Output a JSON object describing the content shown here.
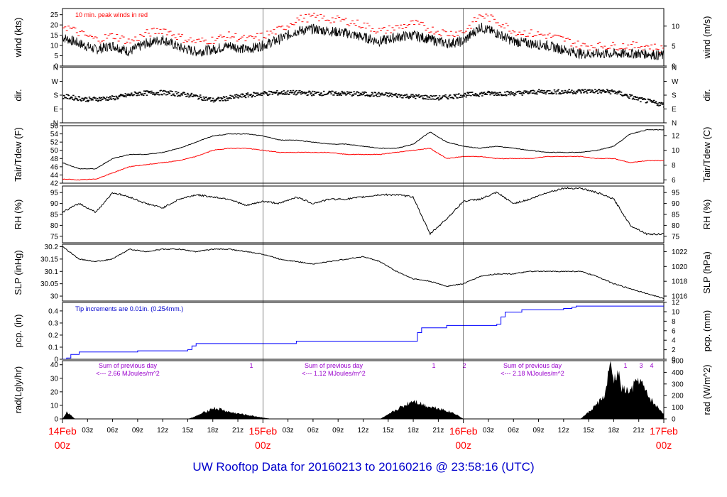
{
  "title": "UW Rooftop Data for 20160213  to  20160216 @ 23:58:16  (UTC)",
  "colors": {
    "black": "#000000",
    "red": "#ff0000",
    "blue": "#0000ff",
    "purple": "#9900cc",
    "title": "#0000cc"
  },
  "chart_data": [
    {
      "type": "line",
      "ylabel": "wind (kts)",
      "ylabel_right": "wind (m/s)",
      "annotation": "10 min. peak winds in red",
      "ylim": [
        0,
        28
      ],
      "yticks": [
        0,
        5,
        10,
        15,
        20,
        25
      ],
      "yticks_right": [
        {
          "label": "0",
          "at": 0
        },
        {
          "label": "5",
          "at": 9.72
        },
        {
          "label": "10",
          "at": 19.44
        }
      ],
      "series": [
        {
          "color": "#000000",
          "x": [
            0,
            2,
            4,
            6,
            8,
            10,
            12,
            14,
            16,
            18,
            20,
            22,
            24,
            26,
            28,
            30,
            32,
            34,
            36,
            38,
            40,
            42,
            44,
            46,
            48,
            50,
            52,
            54,
            56,
            58,
            60,
            62,
            64,
            66,
            68,
            70,
            72
          ],
          "values": [
            14,
            11,
            8,
            10,
            7,
            11,
            13,
            9,
            7,
            8,
            10,
            8,
            10,
            13,
            17,
            18,
            17,
            16,
            14,
            12,
            14,
            15,
            13,
            11,
            12,
            19,
            16,
            12,
            11,
            10,
            8,
            6,
            6,
            6,
            6,
            6,
            5
          ]
        },
        {
          "color": "#ff0000",
          "style": "dashes",
          "x": [
            0,
            2,
            4,
            6,
            8,
            10,
            12,
            14,
            16,
            18,
            20,
            22,
            24,
            26,
            28,
            30,
            32,
            34,
            36,
            38,
            40,
            42,
            44,
            46,
            48,
            50,
            52,
            54,
            56,
            58,
            60,
            62,
            64,
            66,
            68,
            70,
            72
          ],
          "values": [
            20,
            16,
            13,
            15,
            12,
            16,
            18,
            14,
            12,
            13,
            15,
            13,
            15,
            18,
            23,
            24,
            23,
            22,
            20,
            17,
            19,
            21,
            18,
            16,
            17,
            25,
            22,
            17,
            16,
            15,
            13,
            10,
            10,
            10,
            10,
            10,
            8
          ]
        }
      ]
    },
    {
      "type": "scatter",
      "ylabel": "dir.",
      "ylabel_right": "dir.",
      "ylim": [
        0,
        360
      ],
      "yticks": [
        {
          "label": "N",
          "at": 360
        },
        {
          "label": "W",
          "at": 270
        },
        {
          "label": "S",
          "at": 180
        },
        {
          "label": "E",
          "at": 90
        },
        {
          "label": "N",
          "at": 0
        }
      ],
      "series": [
        {
          "color": "#000000",
          "x": [
            0,
            3,
            6,
            9,
            12,
            15,
            18,
            21,
            24,
            27,
            30,
            33,
            36,
            39,
            42,
            45,
            48,
            51,
            54,
            57,
            60,
            63,
            66,
            69,
            72
          ],
          "values": [
            175,
            155,
            165,
            195,
            200,
            185,
            150,
            175,
            195,
            200,
            195,
            195,
            190,
            185,
            175,
            165,
            185,
            195,
            195,
            205,
            205,
            210,
            205,
            155,
            120
          ]
        }
      ]
    },
    {
      "type": "line",
      "ylabel": "Tair/Tdew (F)",
      "ylabel_right": "Tair/Tdew (C)",
      "ylim": [
        42,
        56
      ],
      "yticks": [
        42,
        44,
        46,
        48,
        50,
        52,
        54,
        56
      ],
      "yticks_right": [
        {
          "label": "6",
          "at": 42.8
        },
        {
          "label": "8",
          "at": 46.4
        },
        {
          "label": "10",
          "at": 50
        },
        {
          "label": "12",
          "at": 53.6
        }
      ],
      "series": [
        {
          "name": "Tair",
          "color": "#000000",
          "x": [
            0,
            2,
            4,
            6,
            8,
            10,
            12,
            14,
            16,
            18,
            20,
            22,
            24,
            26,
            28,
            30,
            32,
            34,
            36,
            38,
            40,
            42,
            44,
            46,
            48,
            50,
            52,
            54,
            56,
            58,
            60,
            62,
            64,
            66,
            68,
            70,
            72
          ],
          "values": [
            47,
            45.5,
            45.5,
            48,
            49,
            49,
            49.5,
            50.5,
            52,
            53.5,
            54,
            54,
            53.5,
            52.5,
            52.5,
            52,
            51.5,
            51.5,
            51,
            50.5,
            50.5,
            51.5,
            54.5,
            52,
            51,
            50.5,
            51,
            50.5,
            50,
            49.5,
            49.5,
            49.5,
            50,
            51,
            54,
            55,
            55
          ]
        },
        {
          "name": "Tdew",
          "color": "#ff0000",
          "x": [
            0,
            2,
            4,
            6,
            8,
            10,
            12,
            14,
            16,
            18,
            20,
            22,
            24,
            26,
            28,
            30,
            32,
            34,
            36,
            38,
            40,
            42,
            44,
            46,
            48,
            50,
            52,
            54,
            56,
            58,
            60,
            62,
            64,
            66,
            68,
            70,
            72
          ],
          "values": [
            43,
            42.8,
            43,
            44.5,
            46,
            46.5,
            47,
            47.5,
            48.5,
            50,
            50.5,
            50.5,
            50,
            49.5,
            49.5,
            49.5,
            49.5,
            49,
            49,
            49,
            49.5,
            50,
            50.5,
            48,
            48.5,
            48.5,
            48,
            48,
            48,
            48.5,
            48.5,
            48.5,
            48,
            48,
            47,
            47.5,
            47.5
          ]
        }
      ]
    },
    {
      "type": "line",
      "ylabel": "RH (%)",
      "ylabel_right": "RH (%)",
      "ylim": [
        72,
        98
      ],
      "yticks": [
        75,
        80,
        85,
        90,
        95
      ],
      "series": [
        {
          "color": "#000000",
          "x": [
            0,
            2,
            4,
            6,
            8,
            10,
            12,
            14,
            16,
            18,
            20,
            22,
            24,
            26,
            28,
            30,
            32,
            34,
            36,
            38,
            40,
            42,
            44,
            46,
            48,
            50,
            52,
            54,
            56,
            58,
            60,
            62,
            64,
            66,
            68,
            70,
            72
          ],
          "values": [
            86,
            90,
            86,
            95,
            93,
            90,
            88,
            92,
            94,
            93,
            92,
            89,
            91,
            90,
            93,
            90,
            92,
            92,
            93,
            94,
            94,
            93,
            76,
            83,
            91,
            92,
            95,
            90,
            92,
            95,
            97,
            97,
            95,
            92,
            80,
            76,
            76
          ]
        }
      ]
    },
    {
      "type": "line",
      "ylabel": "SLP (inHg)",
      "ylabel_right": "SLP (hPa)",
      "ylim": [
        29.98,
        30.21
      ],
      "yticks": [
        30.0,
        30.05,
        30.1,
        30.15,
        30.2
      ],
      "yticks_right": [
        {
          "label": "1016",
          "at": 30.0
        },
        {
          "label": "1018",
          "at": 30.06
        },
        {
          "label": "1020",
          "at": 30.12
        },
        {
          "label": "1022",
          "at": 30.18
        }
      ],
      "series": [
        {
          "color": "#000000",
          "x": [
            0,
            2,
            4,
            6,
            8,
            10,
            12,
            14,
            16,
            18,
            20,
            22,
            24,
            26,
            28,
            30,
            32,
            34,
            36,
            38,
            40,
            42,
            44,
            46,
            48,
            50,
            52,
            54,
            56,
            58,
            60,
            62,
            64,
            66,
            68,
            70,
            72
          ],
          "values": [
            30.2,
            30.15,
            30.14,
            30.15,
            30.19,
            30.18,
            30.19,
            30.19,
            30.18,
            30.19,
            30.19,
            30.18,
            30.17,
            30.15,
            30.14,
            30.13,
            30.14,
            30.15,
            30.16,
            30.14,
            30.1,
            30.07,
            30.06,
            30.04,
            30.05,
            30.08,
            30.09,
            30.09,
            30.1,
            30.1,
            30.1,
            30.1,
            30.08,
            30.05,
            30.03,
            30.01,
            29.99
          ]
        }
      ]
    },
    {
      "type": "line",
      "ylabel": "pcp. (in)",
      "ylabel_right": "pcp. (mm)",
      "annotation": "Tip increments are 0.01in. (0.254mm.)",
      "ylim": [
        0,
        0.47
      ],
      "yticks": [
        0,
        0.1,
        0.2,
        0.3,
        0.4
      ],
      "yticks_right": [
        {
          "label": "0",
          "at": 0
        },
        {
          "label": "2",
          "at": 0.0787
        },
        {
          "label": "4",
          "at": 0.1575
        },
        {
          "label": "6",
          "at": 0.2362
        },
        {
          "label": "8",
          "at": 0.315
        },
        {
          "label": "10",
          "at": 0.3937
        },
        {
          "label": "12",
          "at": 0.4724
        }
      ],
      "series": [
        {
          "color": "#0000ff",
          "x": [
            0,
            0.5,
            1,
            2,
            9,
            15,
            15.5,
            16,
            24,
            28,
            42,
            42.5,
            43,
            46,
            52,
            52.5,
            53,
            55,
            60,
            61,
            61.5,
            72
          ],
          "values": [
            0,
            0.01,
            0.04,
            0.06,
            0.07,
            0.08,
            0.11,
            0.13,
            0.13,
            0.15,
            0.15,
            0.22,
            0.26,
            0.28,
            0.29,
            0.35,
            0.39,
            0.41,
            0.42,
            0.43,
            0.44,
            0.44
          ]
        }
      ]
    },
    {
      "type": "area",
      "ylabel": "rad(Lgly/hr)",
      "ylabel_right": "rad (W/m^2)",
      "ylim": [
        0,
        43
      ],
      "yticks": [
        0,
        10,
        20,
        30,
        40
      ],
      "yticks_right": [
        {
          "label": "0",
          "at": 0
        },
        {
          "label": "100",
          "at": 8.6
        },
        {
          "label": "200",
          "at": 17.2
        },
        {
          "label": "300",
          "at": 25.8
        },
        {
          "label": "400",
          "at": 34.4
        },
        {
          "label": "500",
          "at": 43
        }
      ],
      "series": [
        {
          "color": "#000000",
          "x": [
            0,
            0.5,
            1,
            1.5,
            15,
            16,
            17,
            18,
            19,
            20,
            21,
            22,
            23,
            24,
            25,
            38,
            39,
            40,
            41,
            42,
            43,
            44,
            45,
            46,
            47,
            48,
            62,
            63,
            64,
            65,
            65.5,
            66,
            66.5,
            67,
            68,
            69,
            70,
            71,
            72
          ],
          "values": [
            0,
            5,
            3,
            0,
            0,
            2,
            5,
            8,
            7,
            5,
            4,
            3,
            2,
            1,
            0,
            0,
            3,
            7,
            10,
            14,
            11,
            9,
            8,
            6,
            4,
            0,
            0,
            5,
            11,
            18,
            40,
            28,
            34,
            22,
            20,
            30,
            18,
            10,
            4
          ]
        }
      ],
      "annotations": [
        {
          "text": "Sum of previous day",
          "line2": "<--- 2.66 MJoules/m^2"
        },
        {
          "text": "Sum of previous day",
          "line2": "<--- 1.12 MJoules/m^2"
        },
        {
          "text": "Sum of previous day",
          "line2": "<--- 2.18 MJoules/m^2"
        }
      ],
      "markers": [
        "1",
        "1",
        "2",
        "1",
        "3",
        "4"
      ]
    }
  ],
  "xaxis": {
    "hour_ticks": [
      "03z",
      "06z",
      "09z",
      "12z",
      "15z",
      "18z",
      "21z",
      "03z",
      "06z",
      "09z",
      "12z",
      "15z",
      "18z",
      "21z",
      "03z",
      "06z",
      "09z",
      "12z",
      "15z",
      "18z",
      "21z"
    ],
    "date_labels": [
      {
        "date": "14Feb",
        "hour": "00z"
      },
      {
        "date": "15Feb",
        "hour": "00z"
      },
      {
        "date": "16Feb",
        "hour": "00z"
      },
      {
        "date": "17Feb",
        "hour": "00z"
      }
    ]
  }
}
